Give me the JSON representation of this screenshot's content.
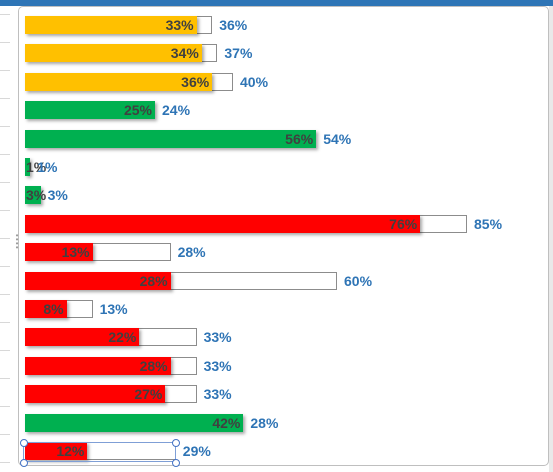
{
  "chart_data": {
    "type": "bar",
    "orientation": "horizontal",
    "axis_max_percent": 100,
    "series": [
      {
        "name": "",
        "values": [
          33,
          34,
          36,
          25,
          56,
          1,
          3,
          76,
          13,
          28,
          8,
          22,
          28,
          27,
          42,
          12
        ]
      },
      {
        "name": "",
        "values": [
          36,
          37,
          40,
          24,
          54,
          1,
          3,
          85,
          28,
          60,
          13,
          33,
          33,
          33,
          28,
          29
        ]
      }
    ],
    "bars": [
      {
        "actual": 33,
        "target": 36,
        "actual_label": "33%",
        "target_label": "36%",
        "color": "#ffc000"
      },
      {
        "actual": 34,
        "target": 37,
        "actual_label": "34%",
        "target_label": "37%",
        "color": "#ffc000"
      },
      {
        "actual": 36,
        "target": 40,
        "actual_label": "36%",
        "target_label": "40%",
        "color": "#ffc000"
      },
      {
        "actual": 25,
        "target": 24,
        "actual_label": "25%",
        "target_label": "24%",
        "color": "#00b050"
      },
      {
        "actual": 56,
        "target": 54,
        "actual_label": "56%",
        "target_label": "54%",
        "color": "#00b050"
      },
      {
        "actual": 1,
        "target": 1,
        "actual_label": "1%",
        "target_label": "1%",
        "color": "#00b050"
      },
      {
        "actual": 3,
        "target": 3,
        "actual_label": "3%",
        "target_label": "3%",
        "color": "#00b050"
      },
      {
        "actual": 76,
        "target": 85,
        "actual_label": "76%",
        "target_label": "85%",
        "color": "#ff0000"
      },
      {
        "actual": 13,
        "target": 28,
        "actual_label": "13%",
        "target_label": "28%",
        "color": "#ff0000"
      },
      {
        "actual": 28,
        "target": 60,
        "actual_label": "28%",
        "target_label": "60%",
        "color": "#ff0000"
      },
      {
        "actual": 8,
        "target": 13,
        "actual_label": "8%",
        "target_label": "13%",
        "color": "#ff0000"
      },
      {
        "actual": 22,
        "target": 33,
        "actual_label": "22%",
        "target_label": "33%",
        "color": "#ff0000"
      },
      {
        "actual": 28,
        "target": 33,
        "actual_label": "28%",
        "target_label": "33%",
        "color": "#ff0000"
      },
      {
        "actual": 27,
        "target": 33,
        "actual_label": "27%",
        "target_label": "33%",
        "color": "#ff0000"
      },
      {
        "actual": 42,
        "target": 28,
        "actual_label": "42%",
        "target_label": "28%",
        "color": "#00b050"
      },
      {
        "actual": 12,
        "target": 29,
        "actual_label": "12%",
        "target_label": "29%",
        "color": "#ff0000"
      }
    ],
    "colors": {
      "amber": "#ffc000",
      "green": "#00b050",
      "red": "#ff0000",
      "target_label": "#2e74b5",
      "header": "#2e75b6"
    },
    "selected_bar": 15
  }
}
